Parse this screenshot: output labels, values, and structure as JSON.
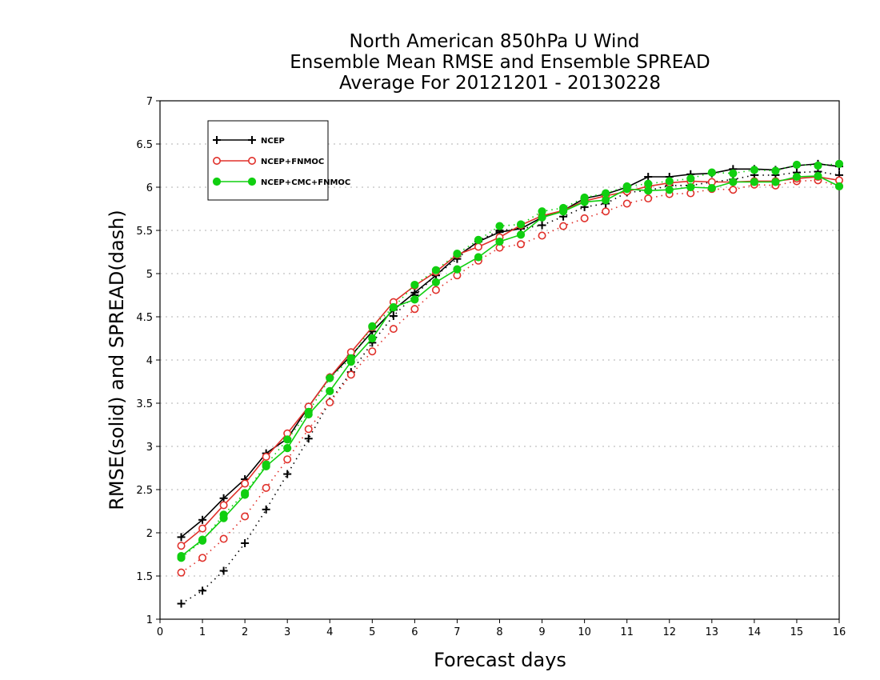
{
  "chart_data": {
    "type": "line",
    "title": "North American 850hPa U Wind",
    "subtitle": "Ensemble Mean RMSE and Ensemble SPREAD",
    "subtitle2": "Average For 20121201 - 20130228",
    "xlabel": "Forecast days",
    "ylabel": "RMSE(solid) and SPREAD(dash)",
    "xlim": [
      0,
      16
    ],
    "ylim": [
      1,
      7
    ],
    "xticks": [
      "0",
      "1",
      "2",
      "3",
      "4",
      "5",
      "6",
      "7",
      "8",
      "9",
      "10",
      "11",
      "12",
      "13",
      "14",
      "15",
      "16"
    ],
    "yticks": [
      "1",
      "1.5",
      "2",
      "2.5",
      "3",
      "3.5",
      "4",
      "4.5",
      "5",
      "5.5",
      "6",
      "6.5",
      "7"
    ],
    "grid": "horizontal dotted",
    "legend_position": "top-left",
    "x": [
      0.5,
      1,
      1.5,
      2,
      2.5,
      3,
      3.5,
      4,
      4.5,
      5,
      5.5,
      6,
      6.5,
      7,
      7.5,
      8,
      8.5,
      9,
      9.5,
      10,
      10.5,
      11,
      11.5,
      12,
      12.5,
      13,
      13.5,
      14,
      14.5,
      15,
      15.5,
      16
    ],
    "series": [
      {
        "name": "NCEP",
        "color": "#000000",
        "marker": "plus",
        "rmse": [
          1.95,
          2.15,
          2.4,
          2.62,
          2.92,
          3.09,
          3.46,
          3.8,
          4.05,
          4.33,
          4.58,
          4.78,
          4.98,
          5.2,
          5.37,
          5.48,
          5.52,
          5.65,
          5.73,
          5.87,
          5.92,
          6.0,
          6.12,
          6.12,
          6.15,
          6.16,
          6.21,
          6.21,
          6.2,
          6.25,
          6.27,
          6.24
        ],
        "spread": [
          1.18,
          1.33,
          1.56,
          1.88,
          2.27,
          2.68,
          3.09,
          3.52,
          3.86,
          4.2,
          4.51,
          4.75,
          4.98,
          5.17,
          5.38,
          5.5,
          5.52,
          5.56,
          5.66,
          5.77,
          5.81,
          5.94,
          5.96,
          6.02,
          6.02,
          6.06,
          6.09,
          6.14,
          6.14,
          6.17,
          6.18,
          6.14
        ]
      },
      {
        "name": "NCEP+FNMOC",
        "color": "#e0302a",
        "marker": "circle",
        "rmse": [
          1.85,
          2.05,
          2.32,
          2.57,
          2.88,
          3.15,
          3.46,
          3.8,
          4.09,
          4.38,
          4.67,
          4.86,
          5.02,
          5.22,
          5.31,
          5.42,
          5.56,
          5.67,
          5.73,
          5.84,
          5.9,
          5.95,
          6.01,
          6.05,
          6.07,
          6.06,
          6.06,
          6.07,
          6.07,
          6.1,
          6.12,
          6.08
        ],
        "spread": [
          1.54,
          1.71,
          1.93,
          2.19,
          2.52,
          2.85,
          3.2,
          3.51,
          3.83,
          4.1,
          4.36,
          4.59,
          4.81,
          4.98,
          5.15,
          5.3,
          5.34,
          5.44,
          5.55,
          5.64,
          5.72,
          5.81,
          5.87,
          5.92,
          5.93,
          5.98,
          5.97,
          6.03,
          6.02,
          6.07,
          6.08,
          6.01
        ]
      },
      {
        "name": "NCEP+CMC+FNMOC",
        "color": "#10cf10",
        "marker": "dot",
        "rmse": [
          1.73,
          1.92,
          2.17,
          2.44,
          2.77,
          2.98,
          3.37,
          3.64,
          3.98,
          4.25,
          4.61,
          4.7,
          4.9,
          5.05,
          5.19,
          5.37,
          5.45,
          5.65,
          5.72,
          5.83,
          5.85,
          5.98,
          5.96,
          5.97,
          6.0,
          5.99,
          6.06,
          6.06,
          6.06,
          6.12,
          6.13,
          6.01
        ],
        "spread": [
          1.71,
          1.91,
          2.21,
          2.46,
          2.79,
          3.08,
          3.4,
          3.79,
          4.02,
          4.39,
          4.61,
          4.87,
          5.04,
          5.23,
          5.39,
          5.55,
          5.57,
          5.72,
          5.76,
          5.88,
          5.93,
          6.01,
          6.04,
          6.07,
          6.1,
          6.17,
          6.16,
          6.2,
          6.19,
          6.26,
          6.25,
          6.27
        ]
      }
    ]
  }
}
